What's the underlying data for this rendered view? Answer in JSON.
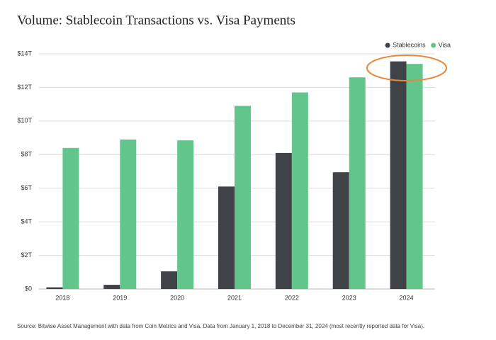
{
  "chart_data": {
    "type": "bar",
    "title": "Volume: Stablecoin Transactions vs. Visa Payments",
    "source": "Source: Bitwise Asset Management with data from Coin Metrics and Visa. Data from January 1, 2018 to December 31, 2024 (most recently reported data for Visa).",
    "categories": [
      "2018",
      "2019",
      "2020",
      "2021",
      "2022",
      "2023",
      "2024"
    ],
    "series": [
      {
        "name": "Stablecoins",
        "color": "#3f4246",
        "values": [
          0.1,
          0.25,
          1.05,
          6.1,
          8.1,
          6.95,
          13.55
        ]
      },
      {
        "name": "Visa",
        "color": "#62c68c",
        "values": [
          8.4,
          8.9,
          8.85,
          10.9,
          11.7,
          12.6,
          13.4
        ]
      }
    ],
    "ylim": [
      0,
      14
    ],
    "yticks": [
      {
        "value": 0,
        "label": "$0"
      },
      {
        "value": 2,
        "label": "$2T"
      },
      {
        "value": 4,
        "label": "$4T"
      },
      {
        "value": 6,
        "label": "$6T"
      },
      {
        "value": 8,
        "label": "$8T"
      },
      {
        "value": 10,
        "label": "$10T"
      },
      {
        "value": 12,
        "label": "$12T"
      },
      {
        "value": 14,
        "label": "$14T"
      }
    ],
    "grid": true,
    "legend": "top-right"
  }
}
